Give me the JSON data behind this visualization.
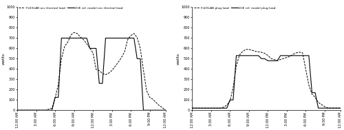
{
  "ylabel": "watts",
  "ylim": [
    0,
    1000
  ],
  "yticks": [
    0,
    100,
    200,
    300,
    400,
    500,
    600,
    700,
    800,
    900,
    1000
  ],
  "xtick_labels": [
    "12:00 AM",
    "3:00 AM",
    "6:00 AM",
    "9:00 AM",
    "12:00 PM",
    "3:00 PM",
    "6:00 PM",
    "9:00 PM",
    "12:00 AM"
  ],
  "xtick_positions": [
    0,
    6,
    12,
    18,
    24,
    30,
    36,
    42,
    47
  ],
  "legend_left": [
    "FLEXLAB occ thermal load",
    "DOE ref. model occ thermal load"
  ],
  "legend_right": [
    "FLEXLAB plug load",
    "DOE ref. model plug load"
  ],
  "line_color": "#000000",
  "background_color": "#ffffff",
  "occ_dashed_y": [
    0,
    0,
    0,
    0,
    0,
    0,
    0,
    0,
    0,
    0,
    10,
    20,
    120,
    250,
    500,
    620,
    660,
    730,
    755,
    745,
    710,
    685,
    645,
    605,
    555,
    395,
    385,
    355,
    345,
    360,
    385,
    425,
    465,
    510,
    565,
    685,
    725,
    745,
    705,
    600,
    390,
    190,
    125,
    105,
    75,
    45,
    25,
    0
  ],
  "occ_solid_y": [
    0,
    0,
    0,
    0,
    0,
    0,
    0,
    0,
    0,
    0,
    0,
    0,
    125,
    125,
    700,
    700,
    700,
    700,
    700,
    700,
    700,
    700,
    700,
    600,
    600,
    600,
    260,
    260,
    700,
    700,
    700,
    700,
    700,
    700,
    700,
    700,
    700,
    700,
    500,
    500,
    0,
    0,
    0,
    0,
    0,
    0,
    0,
    0
  ],
  "plug_dashed_y": [
    20,
    20,
    20,
    20,
    20,
    20,
    20,
    20,
    20,
    20,
    30,
    50,
    90,
    220,
    430,
    535,
    570,
    590,
    590,
    582,
    572,
    567,
    562,
    552,
    532,
    502,
    492,
    482,
    492,
    502,
    512,
    522,
    542,
    557,
    562,
    557,
    400,
    245,
    155,
    125,
    75,
    55,
    35,
    22,
    20,
    20,
    20,
    20
  ],
  "plug_solid_y": [
    20,
    20,
    20,
    20,
    20,
    20,
    20,
    20,
    20,
    20,
    20,
    20,
    100,
    100,
    530,
    530,
    530,
    530,
    530,
    530,
    530,
    530,
    500,
    500,
    480,
    480,
    480,
    480,
    530,
    530,
    530,
    530,
    530,
    530,
    530,
    530,
    530,
    530,
    170,
    170,
    20,
    20,
    20,
    20,
    20,
    20,
    20,
    20
  ]
}
